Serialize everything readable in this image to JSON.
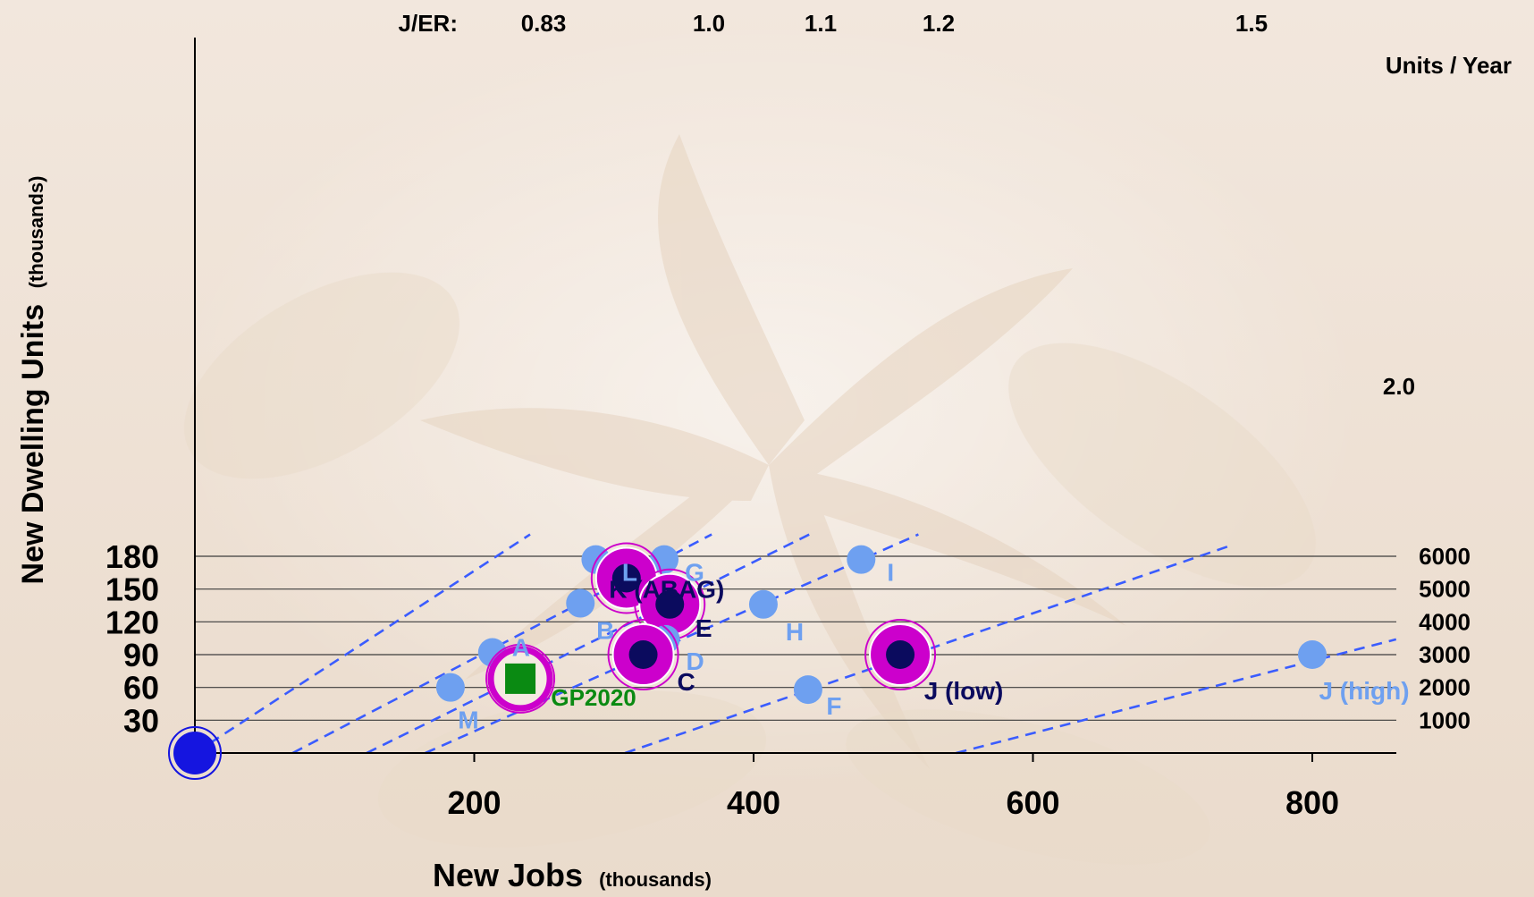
{
  "chart_data": {
    "type": "scatter",
    "title": "",
    "xlabel": "New Jobs",
    "xlabel_unit": "(thousands)",
    "ylabel": "New Dwelling Units",
    "ylabel_unit": "(thousands)",
    "xlim": [
      0,
      850
    ],
    "ylim": [
      0,
      195
    ],
    "x_ticks": [
      200,
      400,
      600,
      800
    ],
    "y_ticks": [
      30,
      60,
      90,
      120,
      150,
      180
    ],
    "grid": "horizontal",
    "secondary_y": {
      "label": "Units / Year",
      "ticks": [
        {
          "y": 30,
          "label": "1000"
        },
        {
          "y": 60,
          "label": "2000"
        },
        {
          "y": 90,
          "label": "3000"
        },
        {
          "y": 120,
          "label": "4000"
        },
        {
          "y": 150,
          "label": "5000"
        },
        {
          "y": 180,
          "label": "6000"
        }
      ]
    },
    "ratio_lines_heading": "J/ER:",
    "ratio_lines": [
      {
        "label": "0.83",
        "from": [
          0,
          0
        ],
        "to": [
          240,
          200
        ]
      },
      {
        "label": "1.0",
        "from": [
          70,
          0
        ],
        "to": [
          370,
          200
        ]
      },
      {
        "label": "1.1",
        "from": [
          123,
          0
        ],
        "to": [
          440,
          200
        ]
      },
      {
        "label": "1.2",
        "from": [
          165,
          0
        ],
        "to": [
          518,
          200
        ]
      },
      {
        "label": "1.5",
        "from": [
          308,
          0
        ],
        "to": [
          742,
          190
        ]
      },
      {
        "label": "2.0",
        "from": [
          545,
          0
        ],
        "to": [
          860,
          104
        ]
      }
    ],
    "colors": {
      "ratio_line": "#3a5cff",
      "scenario_light": "#6ea0f0",
      "scenario_dark": "#0b0b5e",
      "highlight_ring": "#cc00cc",
      "gp2020": "#0a8a12",
      "origin": "#1515e0"
    },
    "points": [
      {
        "label": "L",
        "x": 287,
        "y": 177,
        "kind": "light"
      },
      {
        "label": "G",
        "x": 336,
        "y": 177,
        "kind": "light"
      },
      {
        "label": "I",
        "x": 477,
        "y": 177,
        "kind": "light"
      },
      {
        "label": "K (ABAG)",
        "x": 309,
        "y": 160,
        "kind": "highlight"
      },
      {
        "label": "B",
        "x": 276,
        "y": 137,
        "kind": "light"
      },
      {
        "label": "E",
        "x": 340,
        "y": 136,
        "kind": "highlight"
      },
      {
        "label": "H",
        "x": 407,
        "y": 136,
        "kind": "light"
      },
      {
        "label": "D",
        "x": 337,
        "y": 104,
        "kind": "light"
      },
      {
        "label": "A",
        "x": 213,
        "y": 92,
        "kind": "light"
      },
      {
        "label": "C",
        "x": 321,
        "y": 90,
        "kind": "highlight"
      },
      {
        "label": "J (low)",
        "x": 505,
        "y": 90,
        "kind": "highlight"
      },
      {
        "label": "J (high)",
        "x": 800,
        "y": 90,
        "kind": "light"
      },
      {
        "label": "GP2020",
        "x": 233,
        "y": 68,
        "kind": "gp2020"
      },
      {
        "label": "M",
        "x": 183,
        "y": 60,
        "kind": "light"
      },
      {
        "label": "F",
        "x": 439,
        "y": 58,
        "kind": "light"
      },
      {
        "label": "",
        "x": 0,
        "y": 0,
        "kind": "origin"
      }
    ]
  }
}
